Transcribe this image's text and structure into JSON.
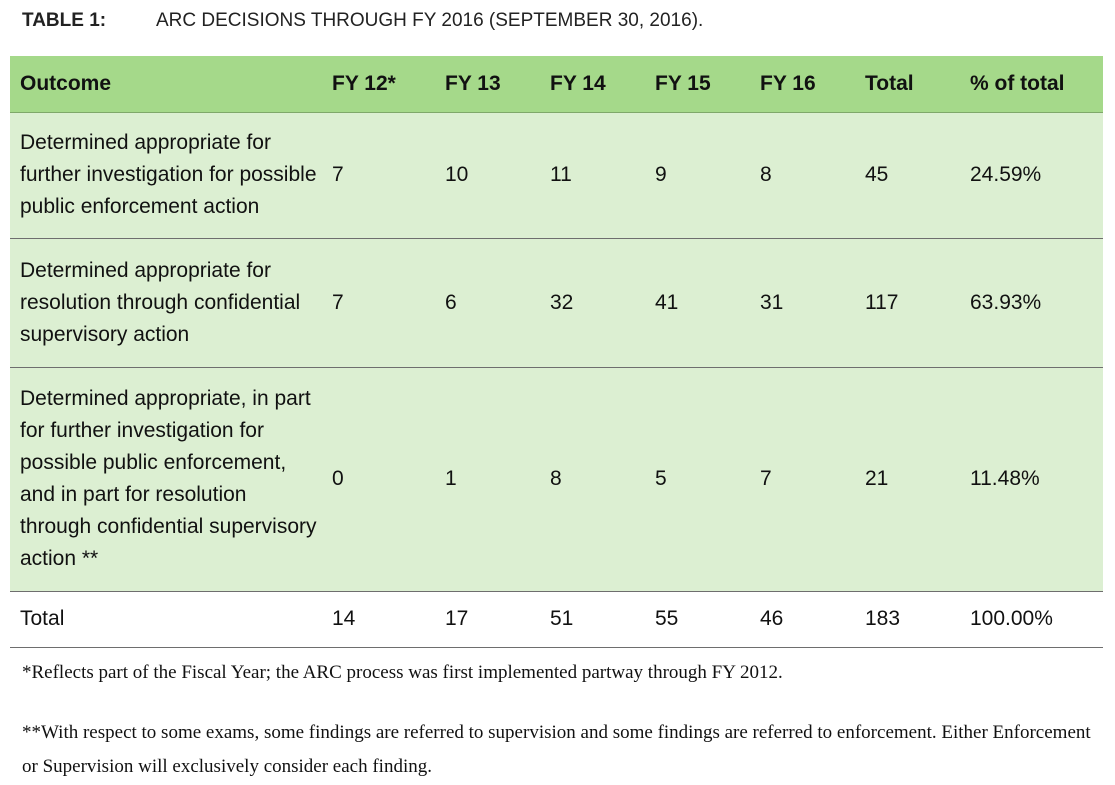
{
  "caption": {
    "label": "TABLE 1:",
    "title": "ARC DECISIONS THROUGH FY 2016 (SEPTEMBER 30, 2016)."
  },
  "table": {
    "headers": [
      "Outcome",
      "FY 12*",
      "FY 13",
      "FY 14",
      "FY 15",
      "FY 16",
      "Total",
      "% of total"
    ],
    "rows": [
      {
        "outcome": "Determined appropriate for further investigation for possible public enforcement action",
        "values": [
          "7",
          "10",
          "11",
          "9",
          "8",
          "45",
          "24.59%"
        ]
      },
      {
        "outcome": "Determined appropriate for resolution through confidential supervisory action",
        "values": [
          "7",
          "6",
          "32",
          "41",
          "31",
          "117",
          "63.93%"
        ]
      },
      {
        "outcome": "Determined appropriate, in part for further investigation for possible public enforcement, and in part for resolution through confidential supervisory action **",
        "values": [
          "0",
          "1",
          "8",
          "5",
          "7",
          "21",
          "11.48%"
        ]
      }
    ],
    "total": {
      "label": "Total",
      "values": [
        "14",
        "17",
        "51",
        "55",
        "46",
        "183",
        "100.00%"
      ]
    }
  },
  "notes": [
    "*Reflects part of the Fiscal Year; the ARC process was first implemented partway through FY 2012.",
    "**With respect to some exams, some findings are referred to supervision and some findings are referred to enforcement. Either Enforcement or Supervision will exclusively consider each finding."
  ],
  "colors": {
    "header_bg": "#a5d98a",
    "row_bg": "#dcefd2"
  }
}
